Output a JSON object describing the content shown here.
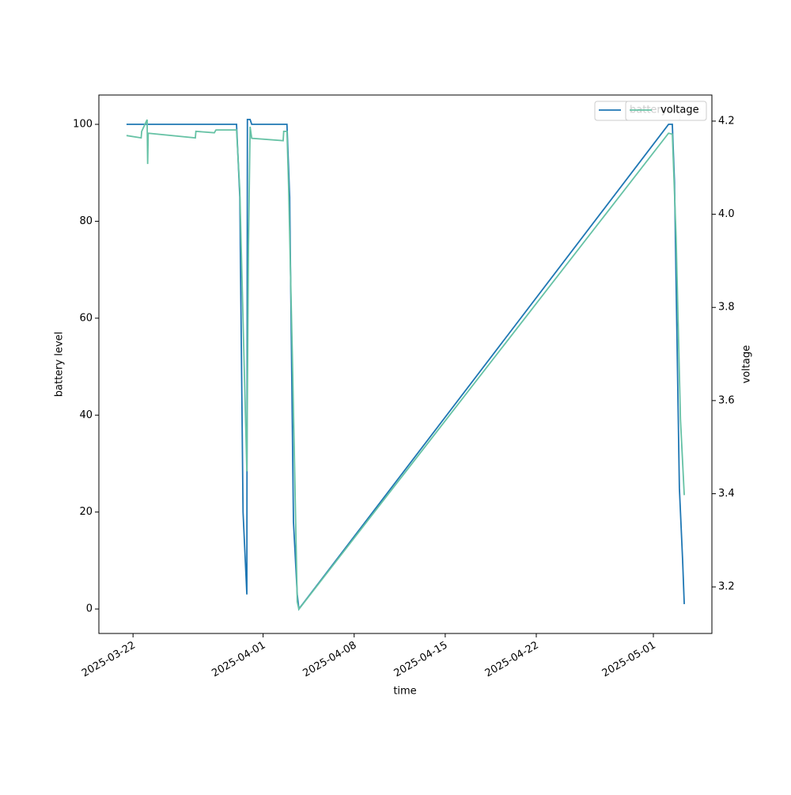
{
  "chart_data": {
    "type": "line",
    "xlabel": "time",
    "ylabel": "battery level",
    "y2label": "voltage",
    "xlim": [
      "2025-03-19T09:00",
      "2025-05-05T12:00"
    ],
    "xticks": [
      "2025-03-22",
      "2025-04-01",
      "2025-04-08",
      "2025-04-15",
      "2025-04-22",
      "2025-05-01"
    ],
    "ylim": [
      -5.05,
      106.05
    ],
    "yticks": [
      0,
      20,
      40,
      60,
      80,
      100
    ],
    "y2lim": [
      3.1,
      4.256
    ],
    "y2ticks": [
      3.2,
      3.4,
      3.6,
      3.8,
      {
        "value": 4,
        "label": "4.0"
      },
      4.2
    ],
    "legend": "upper right",
    "series": [
      {
        "name": "battery",
        "color": "#1f77b4",
        "x": [
          "2025-03-21T12:00",
          "2025-03-29T23:00",
          "2025-03-30T05:00",
          "2025-03-30T11:00",
          "2025-03-30T18:00",
          "2025-03-30T19:00",
          "2025-03-31T00:00",
          "2025-03-31T03:00",
          "2025-04-02T20:00",
          "2025-04-03T01:00",
          "2025-04-03T08:00",
          "2025-04-03T15:00",
          "2025-04-03T18:00",
          "2025-05-02T04:00",
          "2025-05-02T11:00",
          "2025-05-02T15:00",
          "2025-05-03T00:00",
          "2025-05-03T06:00",
          "2025-05-03T09:00"
        ],
        "values": [
          100,
          100,
          85,
          20,
          3,
          101,
          101,
          100,
          100,
          85,
          18,
          3,
          0,
          100,
          100,
          88,
          25,
          10,
          1
        ]
      },
      {
        "name": "voltage",
        "color": "#66c2a5",
        "axis": "y2",
        "x": [
          "2025-03-21T12:00",
          "2025-03-22T15:00",
          "2025-03-22T16:00",
          "2025-03-23T02:00",
          "2025-03-23T03:00",
          "2025-03-23T04:00",
          "2025-03-26T19:00",
          "2025-03-26T20:00",
          "2025-03-28T06:00",
          "2025-03-28T09:00",
          "2025-03-29T23:00",
          "2025-03-30T05:00",
          "2025-03-30T18:00",
          "2025-03-30T21:00",
          "2025-03-31T00:00",
          "2025-03-31T03:00",
          "2025-04-02T13:00",
          "2025-04-02T14:00",
          "2025-04-02T20:00",
          "2025-04-02T23:00",
          "2025-04-03T06:00",
          "2025-04-03T15:00",
          "2025-04-03T18:00",
          "2025-05-02T04:00",
          "2025-05-02T11:00",
          "2025-05-02T18:00",
          "2025-05-03T02:00",
          "2025-05-03T09:00"
        ],
        "values": [
          4.169,
          4.164,
          4.178,
          4.203,
          4.108,
          4.174,
          4.164,
          4.178,
          4.175,
          4.181,
          4.181,
          4.052,
          3.448,
          3.93,
          4.188,
          4.163,
          4.158,
          4.178,
          4.178,
          4.06,
          3.695,
          3.168,
          3.152,
          4.174,
          4.172,
          3.95,
          3.56,
          3.397
        ]
      }
    ]
  }
}
